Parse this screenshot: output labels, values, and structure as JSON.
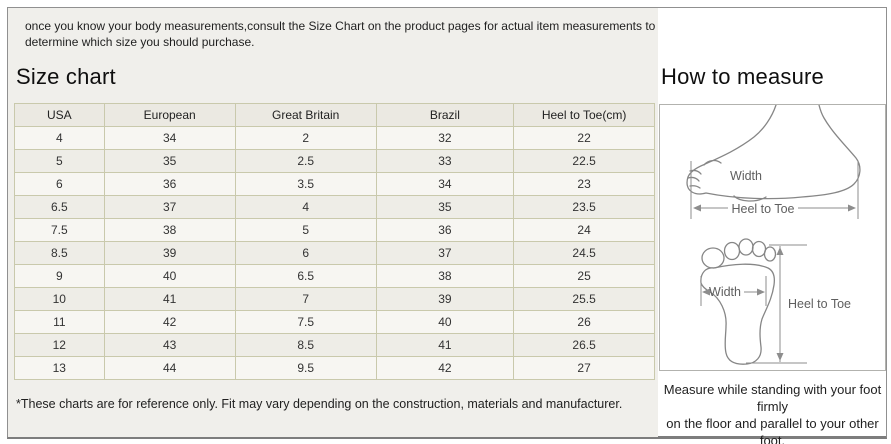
{
  "intro": {
    "line1": "once you know your body measurements,consult the Size Chart on the product pages for actual item measurements to",
    "line2": "determine which size you should purchase."
  },
  "size_chart": {
    "title": "Size chart",
    "columns": [
      "USA",
      "European",
      "Great Britain",
      "Brazil",
      "Heel to Toe(cm)"
    ],
    "rows": [
      [
        "4",
        "34",
        "2",
        "32",
        "22"
      ],
      [
        "5",
        "35",
        "2.5",
        "33",
        "22.5"
      ],
      [
        "6",
        "36",
        "3.5",
        "34",
        "23"
      ],
      [
        "6.5",
        "37",
        "4",
        "35",
        "23.5"
      ],
      [
        "7.5",
        "38",
        "5",
        "36",
        "24"
      ],
      [
        "8.5",
        "39",
        "6",
        "37",
        "24.5"
      ],
      [
        "9",
        "40",
        "6.5",
        "38",
        "25"
      ],
      [
        "10",
        "41",
        "7",
        "39",
        "25.5"
      ],
      [
        "11",
        "42",
        "7.5",
        "40",
        "26"
      ],
      [
        "12",
        "43",
        "8.5",
        "41",
        "26.5"
      ],
      [
        "13",
        "44",
        "9.5",
        "42",
        "27"
      ]
    ],
    "footnote": "*These charts are for reference only. Fit may vary depending on the construction, materials and manufacturer."
  },
  "how_to_measure": {
    "title": "How to measure",
    "side_view": {
      "width_label": "Width",
      "heel_to_toe_label": "Heel to Toe"
    },
    "top_view": {
      "width_label": "Width",
      "heel_to_toe_label": "Heel to Toe"
    },
    "instruction_line1": "Measure while standing with your foot firmly",
    "instruction_line2": "on the floor and parallel to your other foot."
  },
  "colors": {
    "panel_background": "#f0efeb",
    "table_border": "#c9c9ac",
    "table_header_background": "#ebe9e2",
    "row_light": "#f7f6f2",
    "row_dark": "#eeede7",
    "frame_border": "#909090",
    "diagram_line": "#868686"
  }
}
